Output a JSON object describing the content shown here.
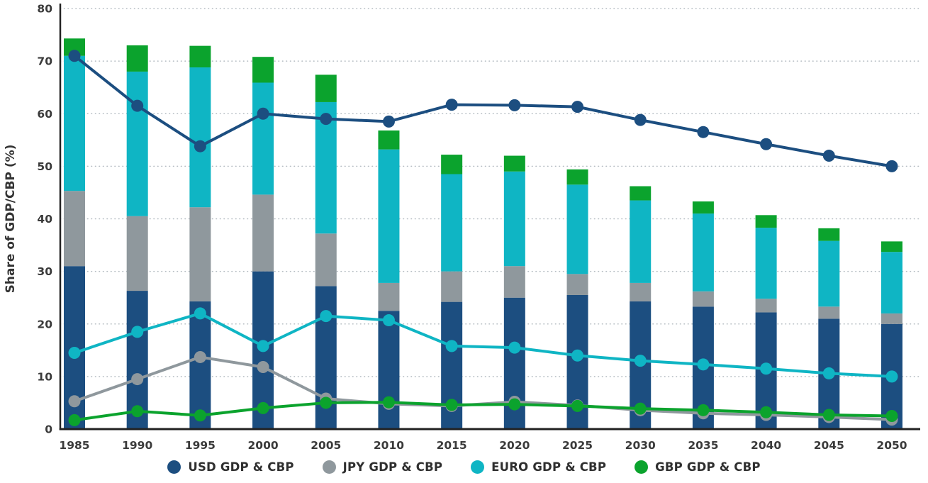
{
  "chart_data": {
    "type": "bar+line",
    "title": "",
    "xlabel": "",
    "ylabel": "Share of GDP/CBP (%)",
    "ylim": [
      0,
      80
    ],
    "ytick_step": 10,
    "grid": "dotted-horizontal",
    "legend_position": "bottom",
    "axis_color": "#222222",
    "grid_color": "#b2bac0",
    "tick_label_color": "#3a3a3a",
    "categories": [
      "1985",
      "1990",
      "1995",
      "2000",
      "2005",
      "2010",
      "2015",
      "2020",
      "2025",
      "2030",
      "2035",
      "2040",
      "2045",
      "2050"
    ],
    "bar_series": [
      {
        "key": "usd",
        "name": "USD GDP & CBP",
        "color": "#1c4e80",
        "values": [
          31.0,
          26.3,
          24.3,
          30.0,
          27.2,
          22.5,
          24.2,
          25.0,
          25.5,
          24.3,
          23.3,
          22.2,
          21.0,
          20.0
        ]
      },
      {
        "key": "jpy",
        "name": "JPY GDP & CBP",
        "color": "#8f989d",
        "values": [
          14.3,
          14.2,
          17.9,
          14.6,
          10.0,
          5.3,
          5.8,
          6.0,
          4.0,
          3.5,
          2.9,
          2.6,
          2.3,
          2.0
        ]
      },
      {
        "key": "euro",
        "name": "EURO GDP & CBP",
        "color": "#0fb5c4",
        "values": [
          25.7,
          27.5,
          26.6,
          21.3,
          25.0,
          25.4,
          18.5,
          18.0,
          17.0,
          15.7,
          14.8,
          13.5,
          12.5,
          11.7
        ]
      },
      {
        "key": "gbp",
        "name": "GBP GDP & CBP",
        "color": "#0ba32d",
        "values": [
          3.3,
          5.0,
          4.1,
          4.9,
          5.2,
          3.6,
          3.7,
          3.0,
          2.9,
          2.7,
          2.3,
          2.4,
          2.4,
          2.0
        ]
      }
    ],
    "line_series": [
      {
        "key": "jpy",
        "name": "JPY GDP & CBP",
        "color": "#8f989d",
        "values": [
          5.3,
          9.5,
          13.7,
          11.8,
          5.8,
          4.8,
          4.4,
          5.2,
          4.5,
          3.6,
          3.0,
          2.7,
          2.3,
          1.8
        ]
      },
      {
        "key": "gbp",
        "name": "GBP GDP & CBP",
        "color": "#0ba32d",
        "values": [
          1.7,
          3.4,
          2.6,
          4.0,
          5.0,
          5.1,
          4.6,
          4.7,
          4.4,
          3.9,
          3.6,
          3.2,
          2.7,
          2.5
        ]
      },
      {
        "key": "euro",
        "name": "EURO GDP & CBP",
        "color": "#0fb5c4",
        "values": [
          14.5,
          18.5,
          22.0,
          15.8,
          21.5,
          20.7,
          15.8,
          15.5,
          14.0,
          13.0,
          12.3,
          11.5,
          10.6,
          10.0
        ]
      },
      {
        "key": "usd",
        "name": "USD GDP & CBP",
        "color": "#1c4e80",
        "values": [
          71.0,
          61.5,
          53.8,
          60.0,
          59.0,
          58.5,
          61.7,
          61.6,
          61.3,
          58.8,
          56.5,
          54.2,
          52.0,
          50.0
        ]
      }
    ],
    "legend": [
      {
        "key": "usd",
        "label": "USD GDP & CBP",
        "color": "#1c4e80"
      },
      {
        "key": "jpy",
        "label": "JPY GDP & CBP",
        "color": "#8f989d"
      },
      {
        "key": "euro",
        "label": "EURO GDP & CBP",
        "color": "#0fb5c4"
      },
      {
        "key": "gbp",
        "label": "GBP GDP & CBP",
        "color": "#0ba32d"
      }
    ]
  }
}
